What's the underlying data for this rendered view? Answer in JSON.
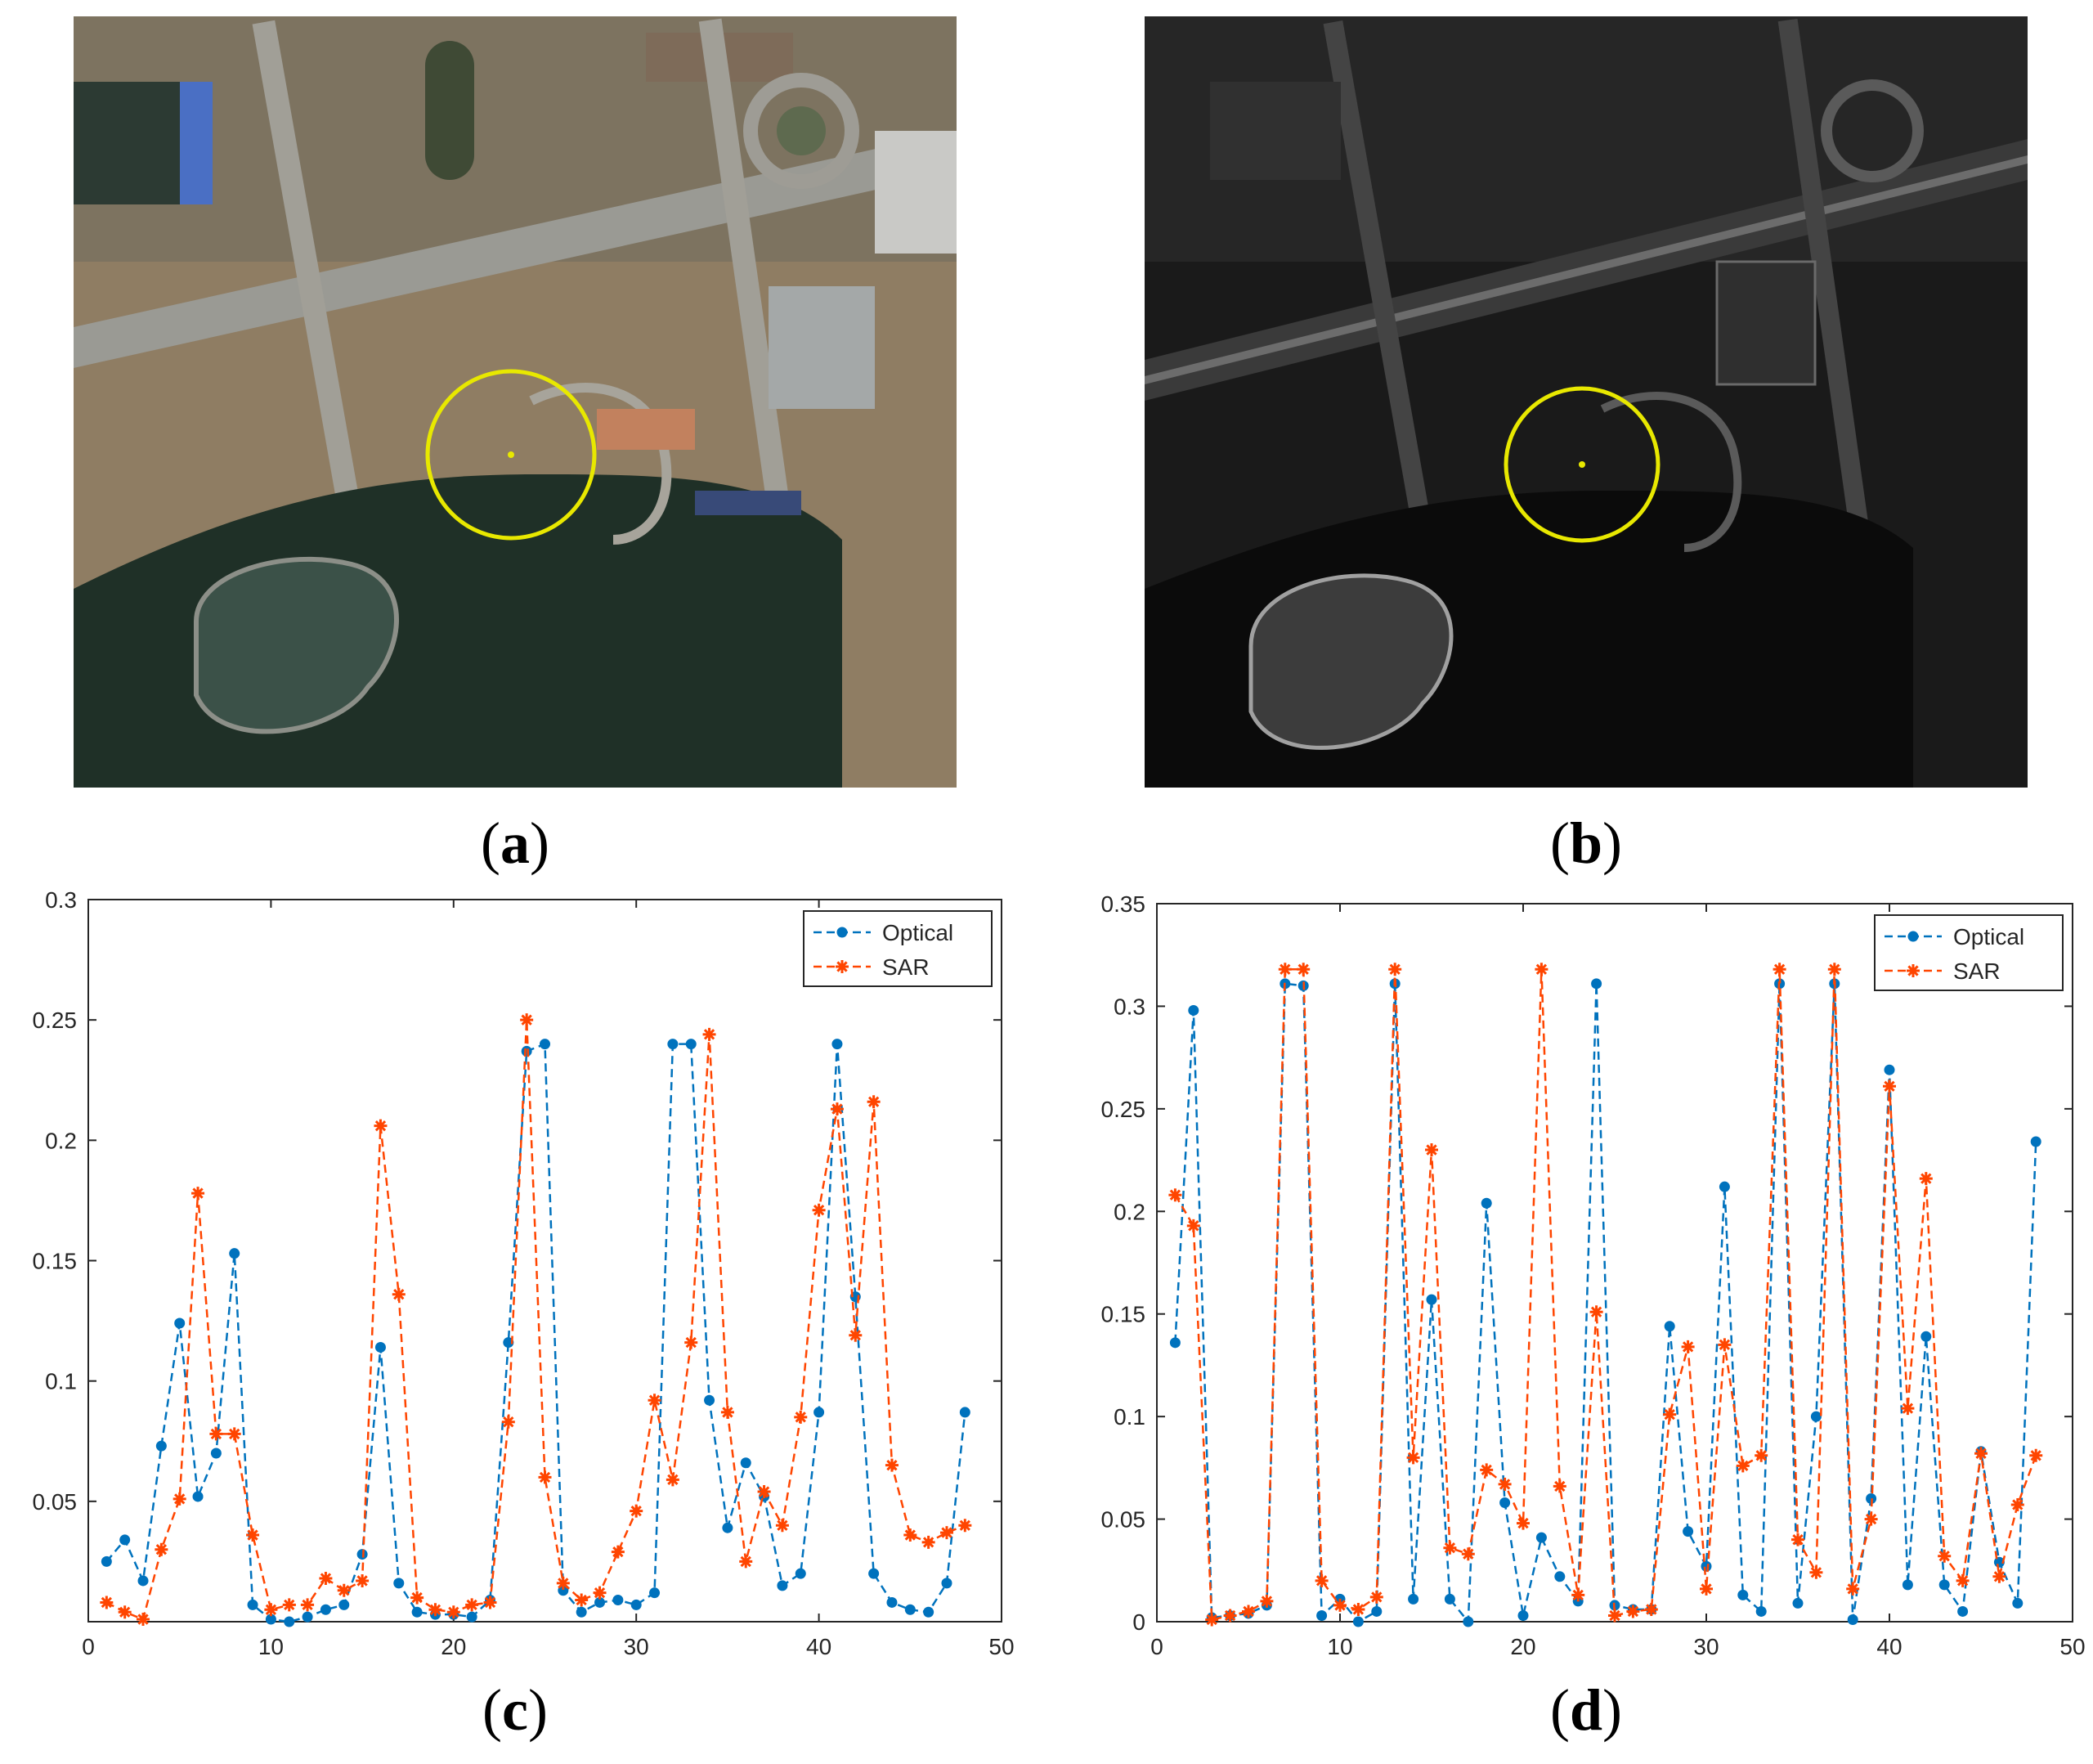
{
  "panels": {
    "a": {
      "label": "a"
    },
    "b": {
      "label": "b"
    },
    "c": {
      "label": "c"
    },
    "d": {
      "label": "d"
    }
  },
  "colors": {
    "optical": "#0072BD",
    "sar": "#FF4500",
    "circle": "#E8E800"
  },
  "chart_data": [
    {
      "panel": "c",
      "type": "line",
      "xlim": [
        0,
        50
      ],
      "ylim": [
        0,
        0.3
      ],
      "xticks": [
        0,
        10,
        20,
        30,
        40,
        50
      ],
      "xtick_labels": [
        "0",
        "10",
        "20",
        "30",
        "40",
        "50"
      ],
      "yticks": [
        0.05,
        0.1,
        0.15,
        0.2,
        0.25,
        0.3
      ],
      "ytick_labels": [
        "0.05",
        "0.1",
        "0.15",
        "0.2",
        "0.25",
        "0.3"
      ],
      "legend_position": "top-right",
      "x": [
        1,
        2,
        3,
        4,
        5,
        6,
        7,
        8,
        9,
        10,
        11,
        12,
        13,
        14,
        15,
        16,
        17,
        18,
        19,
        20,
        21,
        22,
        23,
        24,
        25,
        26,
        27,
        28,
        29,
        30,
        31,
        32,
        33,
        34,
        35,
        36,
        37,
        38,
        39,
        40,
        41,
        42,
        43,
        44,
        45,
        46,
        47,
        48
      ],
      "series": [
        {
          "name": "Optical",
          "marker": "dot",
          "values": [
            0.025,
            0.034,
            0.017,
            0.073,
            0.124,
            0.052,
            0.07,
            0.153,
            0.007,
            0.001,
            0.0,
            0.002,
            0.005,
            0.007,
            0.028,
            0.114,
            0.016,
            0.004,
            0.003,
            0.003,
            0.002,
            0.009,
            0.116,
            0.237,
            0.24,
            0.013,
            0.004,
            0.008,
            0.009,
            0.007,
            0.012,
            0.24,
            0.24,
            0.092,
            0.039,
            0.066,
            0.052,
            0.015,
            0.02,
            0.087,
            0.24,
            0.135,
            0.02,
            0.008,
            0.005,
            0.004,
            0.016,
            0.087
          ]
        },
        {
          "name": "SAR",
          "marker": "star",
          "values": [
            0.008,
            0.004,
            0.001,
            0.03,
            0.051,
            0.178,
            0.078,
            0.078,
            0.036,
            0.005,
            0.007,
            0.007,
            0.018,
            0.013,
            0.017,
            0.206,
            0.136,
            0.01,
            0.005,
            0.004,
            0.007,
            0.008,
            0.083,
            0.25,
            0.06,
            0.016,
            0.009,
            0.012,
            0.029,
            0.046,
            0.092,
            0.059,
            0.116,
            0.244,
            0.087,
            0.025,
            0.054,
            0.04,
            0.085,
            0.171,
            0.213,
            0.119,
            0.216,
            0.065,
            0.036,
            0.033,
            0.037,
            0.04
          ]
        }
      ]
    },
    {
      "panel": "d",
      "type": "line",
      "xlim": [
        0,
        50
      ],
      "ylim": [
        0,
        0.35
      ],
      "xticks": [
        0,
        10,
        20,
        30,
        40,
        50
      ],
      "xtick_labels": [
        "0",
        "10",
        "20",
        "30",
        "40",
        "50"
      ],
      "yticks": [
        0,
        0.05,
        0.1,
        0.15,
        0.2,
        0.25,
        0.3,
        0.35
      ],
      "ytick_labels": [
        "0",
        "0.05",
        "0.1",
        "0.15",
        "0.2",
        "0.25",
        "0.3",
        "0.35"
      ],
      "legend_position": "top-right",
      "x": [
        1,
        2,
        3,
        4,
        5,
        6,
        7,
        8,
        9,
        10,
        11,
        12,
        13,
        14,
        15,
        16,
        17,
        18,
        19,
        20,
        21,
        22,
        23,
        24,
        25,
        26,
        27,
        28,
        29,
        30,
        31,
        32,
        33,
        34,
        35,
        36,
        37,
        38,
        39,
        40,
        41,
        42,
        43,
        44,
        45,
        46,
        47,
        48
      ],
      "series": [
        {
          "name": "Optical",
          "marker": "dot",
          "values": [
            0.136,
            0.298,
            0.002,
            0.003,
            0.004,
            0.008,
            0.311,
            0.31,
            0.003,
            0.011,
            0.0,
            0.005,
            0.311,
            0.011,
            0.157,
            0.011,
            0.0,
            0.204,
            0.058,
            0.003,
            0.041,
            0.022,
            0.01,
            0.311,
            0.008,
            0.006,
            0.006,
            0.144,
            0.044,
            0.027,
            0.212,
            0.013,
            0.005,
            0.311,
            0.009,
            0.1,
            0.311,
            0.001,
            0.06,
            0.269,
            0.018,
            0.139,
            0.018,
            0.005,
            0.083,
            0.029,
            0.009,
            0.234
          ]
        },
        {
          "name": "SAR",
          "marker": "star",
          "values": [
            0.208,
            0.193,
            0.001,
            0.003,
            0.005,
            0.01,
            0.318,
            0.318,
            0.02,
            0.008,
            0.006,
            0.012,
            0.318,
            0.08,
            0.23,
            0.036,
            0.033,
            0.074,
            0.067,
            0.048,
            0.318,
            0.066,
            0.013,
            0.151,
            0.003,
            0.005,
            0.006,
            0.101,
            0.134,
            0.016,
            0.135,
            0.076,
            0.081,
            0.318,
            0.04,
            0.024,
            0.318,
            0.016,
            0.05,
            0.261,
            0.104,
            0.216,
            0.032,
            0.02,
            0.082,
            0.022,
            0.057,
            0.081
          ]
        }
      ]
    }
  ]
}
